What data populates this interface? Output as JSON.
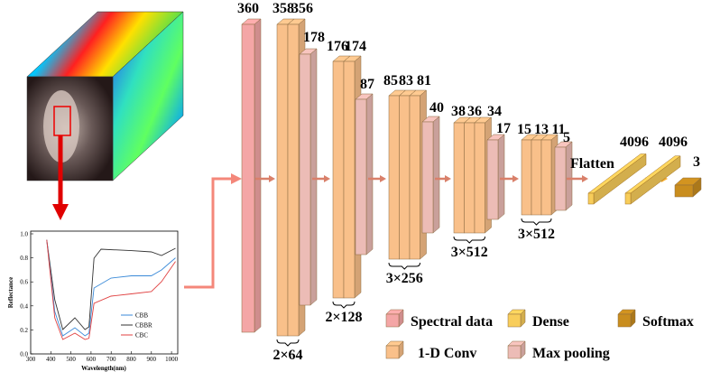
{
  "size_labels": [
    "360",
    "358",
    "356",
    "178",
    "176",
    "174",
    "87",
    "85",
    "83",
    "81",
    "40",
    "38",
    "36",
    "34",
    "17",
    "15",
    "13",
    "11",
    "5"
  ],
  "channel_labels": [
    "2×64",
    "2×128",
    "3×256",
    "3×512",
    "3×512"
  ],
  "flatten": "Flatten",
  "dense_units": [
    "4096",
    "4096"
  ],
  "output_units": "3",
  "legend": [
    "Spectral data",
    "1-D Conv",
    "Dense",
    "Max pooling",
    "Softmax"
  ],
  "spectral_plot": {
    "ylabel": "Reflectance",
    "xlabel": "Wavelength(nm)",
    "xticks": [
      "300",
      "400",
      "500",
      "600",
      "700",
      "800",
      "900",
      "1000"
    ],
    "yticks": [
      "0.0",
      "0.2",
      "0.4",
      "0.6",
      "0.8",
      "1.0"
    ],
    "series": [
      "CBB",
      "CBBR",
      "CBC"
    ]
  }
}
